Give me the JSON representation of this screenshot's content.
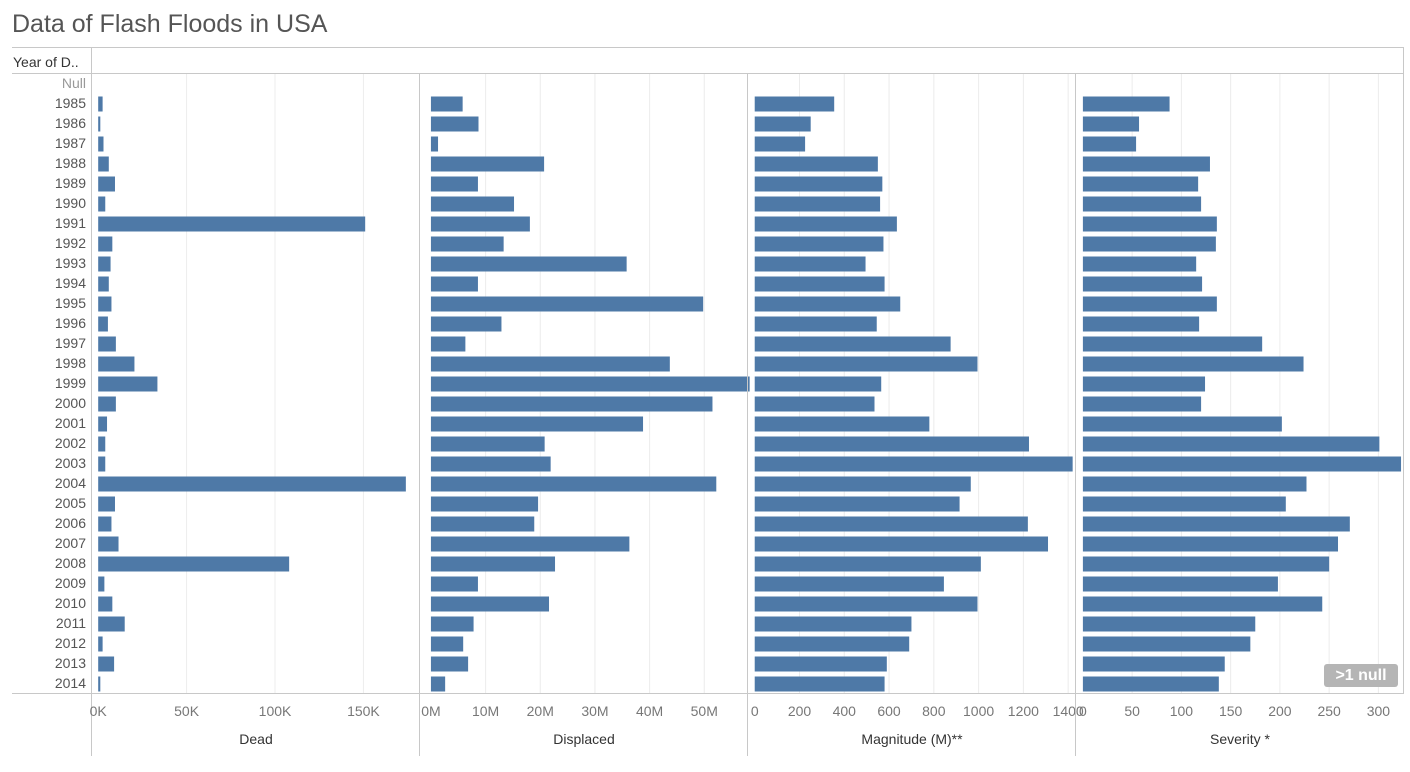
{
  "title": "Data of Flash Floods in USA",
  "row_header": "Year of D..",
  "null_badge": ">1 null",
  "colors": {
    "bar": "#4e79a7",
    "grid": "#ececec",
    "axis": "#c8c8c8",
    "null_label": "#999999",
    "badge": "#b5b5b5"
  },
  "chart_data": {
    "type": "bar",
    "orientation": "horizontal",
    "categories": [
      "Null",
      "1985",
      "1986",
      "1987",
      "1988",
      "1989",
      "1990",
      "1991",
      "1992",
      "1993",
      "1994",
      "1995",
      "1996",
      "1997",
      "1998",
      "1999",
      "2000",
      "2001",
      "2002",
      "2003",
      "2004",
      "2005",
      "2006",
      "2007",
      "2008",
      "2009",
      "2010",
      "2011",
      "2012",
      "2013",
      "2014"
    ],
    "panels": [
      {
        "name": "Dead",
        "ticks": [
          0,
          50000,
          100000,
          150000
        ],
        "tick_labels": [
          "0K",
          "50K",
          "100K",
          "150K"
        ],
        "xlim": [
          -3500,
          182000
        ],
        "values": [
          null,
          2500,
          1200,
          3000,
          6000,
          9500,
          4000,
          151000,
          8000,
          7000,
          6000,
          7500,
          5500,
          10000,
          20500,
          33500,
          10000,
          5000,
          4000,
          4000,
          174000,
          9500,
          7500,
          11500,
          108000,
          3500,
          8000,
          15000,
          2500,
          9000,
          1200
        ]
      },
      {
        "name": "Displaced",
        "ticks": [
          0,
          10000000,
          20000000,
          30000000,
          40000000,
          50000000
        ],
        "tick_labels": [
          "0M",
          "10M",
          "20M",
          "30M",
          "40M",
          "50M"
        ],
        "xlim": [
          -2000000,
          58000000
        ],
        "values": [
          null,
          5800000,
          8700000,
          1300000,
          20700000,
          8600000,
          15200000,
          18100000,
          13300000,
          35800000,
          8600000,
          49800000,
          12900000,
          6300000,
          43700000,
          58300000,
          51500000,
          38800000,
          20800000,
          21900000,
          52200000,
          19600000,
          18900000,
          36300000,
          22700000,
          8600000,
          21600000,
          7800000,
          5900000,
          6800000,
          2600000
        ]
      },
      {
        "name": "Magnitude (M)**",
        "ticks": [
          0,
          200,
          400,
          600,
          800,
          1000,
          1200,
          1400
        ],
        "tick_labels": [
          "0",
          "200",
          "400",
          "600",
          "800",
          "1000",
          "1200",
          "1400"
        ],
        "xlim": [
          -30,
          1435
        ],
        "values": [
          null,
          355,
          250,
          225,
          550,
          570,
          560,
          635,
          575,
          495,
          580,
          650,
          545,
          875,
          995,
          565,
          535,
          780,
          1225,
          1420,
          965,
          915,
          1220,
          1310,
          1010,
          845,
          995,
          700,
          690,
          590,
          580
        ]
      },
      {
        "name": "Severity *",
        "ticks": [
          0,
          50,
          100,
          150,
          200,
          250,
          300
        ],
        "tick_labels": [
          "0",
          "50",
          "100",
          "150",
          "200",
          "250",
          "300"
        ],
        "xlim": [
          -7,
          326
        ],
        "values": [
          null,
          88,
          57,
          54,
          129,
          117,
          120,
          136,
          135,
          115,
          121,
          136,
          118,
          182,
          224,
          124,
          120,
          202,
          301,
          323,
          227,
          206,
          271,
          259,
          250,
          198,
          243,
          175,
          170,
          144,
          138
        ]
      }
    ]
  }
}
